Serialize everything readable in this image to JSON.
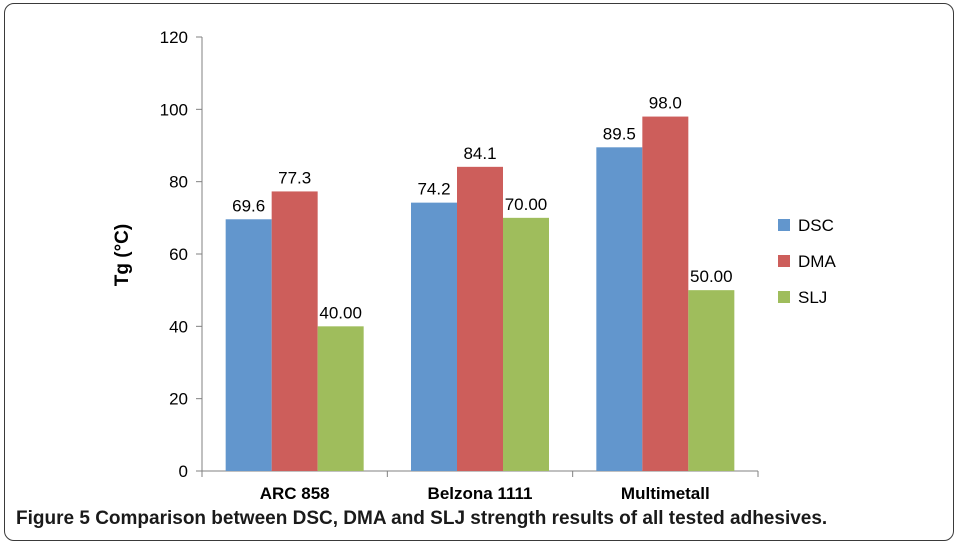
{
  "caption": {
    "label": "Figure 5",
    "text": "Comparison between DSC, DMA and SLJ strength results of all tested adhesives."
  },
  "chart_data": {
    "type": "bar",
    "title": "",
    "xlabel": "",
    "ylabel": "Tg (°C)",
    "ylim": [
      0,
      120
    ],
    "yticks": [
      0,
      20,
      40,
      60,
      80,
      100,
      120
    ],
    "grid": false,
    "legend_position": "right",
    "categories": [
      "ARC 858",
      "Belzona 1111",
      "Multimetall"
    ],
    "series": [
      {
        "name": "DSC",
        "color": "#6296cd",
        "values": [
          69.6,
          74.2,
          89.5
        ],
        "labels": [
          "69.6",
          "74.2",
          "89.5"
        ]
      },
      {
        "name": "DMA",
        "color": "#cd5e5b",
        "values": [
          77.3,
          84.1,
          98.0
        ],
        "labels": [
          "77.3",
          "84.1",
          "98.0"
        ]
      },
      {
        "name": "SLJ",
        "color": "#9fbd5c",
        "values": [
          40.0,
          70.0,
          50.0
        ],
        "labels": [
          "40.00",
          "70.00",
          "50.00"
        ]
      }
    ]
  }
}
